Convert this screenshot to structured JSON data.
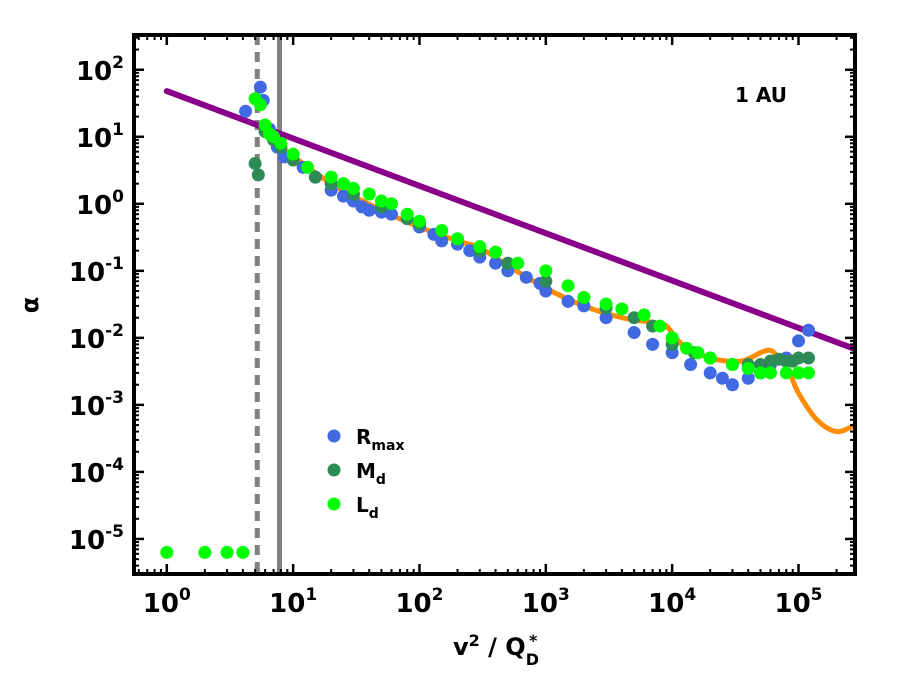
{
  "chart_data": {
    "type": "scatter",
    "title": "",
    "annotation": "1 AU",
    "xlabel": {
      "base": "v",
      "sup": "2",
      "mid": " / Q",
      "sub": "D",
      "sup2": "*"
    },
    "ylabel": "α",
    "xscale": "log",
    "yscale": "log",
    "xlim": [
      0.55,
      280000
    ],
    "ylim": [
      3e-06,
      330
    ],
    "x_ticks": [
      {
        "value": 1,
        "base": "10",
        "exp": "0"
      },
      {
        "value": 10,
        "base": "10",
        "exp": "1"
      },
      {
        "value": 100,
        "base": "10",
        "exp": "2"
      },
      {
        "value": 1000,
        "base": "10",
        "exp": "3"
      },
      {
        "value": 10000,
        "base": "10",
        "exp": "4"
      },
      {
        "value": 100000,
        "base": "10",
        "exp": "5"
      }
    ],
    "y_ticks": [
      {
        "value": 1e-05,
        "base": "10",
        "exp": "-5"
      },
      {
        "value": 0.0001,
        "base": "10",
        "exp": "-4"
      },
      {
        "value": 0.001,
        "base": "10",
        "exp": "-3"
      },
      {
        "value": 0.01,
        "base": "10",
        "exp": "-2"
      },
      {
        "value": 0.1,
        "base": "10",
        "exp": "-1"
      },
      {
        "value": 1,
        "base": "10",
        "exp": "0"
      },
      {
        "value": 10,
        "base": "10",
        "exp": "1"
      },
      {
        "value": 100,
        "base": "10",
        "exp": "2"
      }
    ],
    "vlines": [
      {
        "x": 5.2,
        "style": "dashed",
        "color": "#808080"
      },
      {
        "x": 7.8,
        "style": "solid",
        "color": "#808080"
      }
    ],
    "lines": [
      {
        "name": "power-law fit",
        "color": "#8B008B",
        "x": [
          1,
          280000
        ],
        "y": [
          48,
          0.0068
        ]
      },
      {
        "name": "smoothed curve",
        "color": "#FF8C00",
        "x": [
          8,
          20,
          50,
          100,
          200,
          300,
          500,
          1000,
          2000,
          4000,
          7000,
          9000,
          12000,
          20000,
          35000,
          50000,
          60000,
          70000,
          85000,
          100000,
          140000,
          200000,
          280000
        ],
        "y": [
          7,
          2.0,
          0.8,
          0.45,
          0.28,
          0.22,
          0.12,
          0.055,
          0.03,
          0.02,
          0.017,
          0.015,
          0.008,
          0.005,
          0.0045,
          0.006,
          0.0065,
          0.005,
          0.003,
          0.0015,
          0.0006,
          0.0004,
          0.0005
        ]
      }
    ],
    "series": [
      {
        "name": "R_max",
        "label_base": "R",
        "label_sub": "max",
        "color": "#4169E1",
        "x": [
          4.2,
          5.5,
          5.8,
          6.5,
          7.5,
          8.5,
          12,
          15,
          20,
          25,
          30,
          35,
          40,
          50,
          60,
          80,
          100,
          130,
          150,
          200,
          250,
          300,
          400,
          500,
          700,
          900,
          1000,
          1500,
          2000,
          3000,
          5000,
          7000,
          10000,
          14000,
          20000,
          25000,
          30000,
          40000,
          50000,
          60000,
          80000,
          100000,
          120000
        ],
        "y": [
          24,
          55,
          35,
          13,
          7,
          5,
          3.5,
          2.5,
          1.6,
          1.3,
          1.1,
          0.9,
          0.8,
          0.75,
          0.7,
          0.6,
          0.45,
          0.35,
          0.28,
          0.25,
          0.2,
          0.16,
          0.13,
          0.1,
          0.08,
          0.065,
          0.05,
          0.035,
          0.03,
          0.02,
          0.012,
          0.008,
          0.006,
          0.004,
          0.003,
          0.0025,
          0.002,
          0.0025,
          0.003,
          0.004,
          0.005,
          0.009,
          0.013
        ]
      },
      {
        "name": "M_d",
        "label_base": "M",
        "label_sub": "d",
        "color": "#2E8B57",
        "x": [
          5,
          5.3,
          6,
          7,
          8,
          10,
          15,
          20,
          30,
          50,
          80,
          100,
          200,
          300,
          500,
          1000,
          2000,
          3000,
          5000,
          7000,
          10000,
          15000,
          20000,
          30000,
          40000,
          50000,
          60000,
          70000,
          80000,
          90000,
          100000,
          120000
        ],
        "y": [
          4,
          2.7,
          12,
          9,
          7,
          4.5,
          2.5,
          2,
          1.4,
          0.9,
          0.6,
          0.5,
          0.3,
          0.2,
          0.13,
          0.07,
          0.04,
          0.028,
          0.02,
          0.015,
          0.008,
          0.006,
          0.005,
          0.004,
          0.004,
          0.004,
          0.0045,
          0.0048,
          0.0045,
          0.0045,
          0.005,
          0.005
        ]
      },
      {
        "name": "L_d",
        "label_base": "L",
        "label_sub": "d",
        "color": "#00FF00",
        "x": [
          1,
          2,
          3,
          4,
          5,
          5.5,
          6,
          6.5,
          7,
          8,
          10,
          13,
          20,
          25,
          30,
          40,
          50,
          60,
          80,
          100,
          150,
          200,
          300,
          400,
          600,
          1000,
          1500,
          2000,
          3000,
          4000,
          6000,
          8000,
          10000,
          13000,
          16000,
          20000,
          30000,
          40000,
          50000,
          60000,
          80000,
          100000,
          120000
        ],
        "y": [
          6.3e-06,
          6.3e-06,
          6.3e-06,
          6.3e-06,
          37,
          30,
          15,
          11,
          10,
          8,
          5.5,
          3.5,
          2.5,
          2,
          1.7,
          1.4,
          1.1,
          1,
          0.7,
          0.55,
          0.4,
          0.3,
          0.23,
          0.19,
          0.13,
          0.1,
          0.06,
          0.04,
          0.032,
          0.027,
          0.022,
          0.015,
          0.01,
          0.007,
          0.006,
          0.005,
          0.004,
          0.0035,
          0.003,
          0.003,
          0.003,
          0.003,
          0.003
        ]
      }
    ],
    "legend": "lower-left"
  }
}
